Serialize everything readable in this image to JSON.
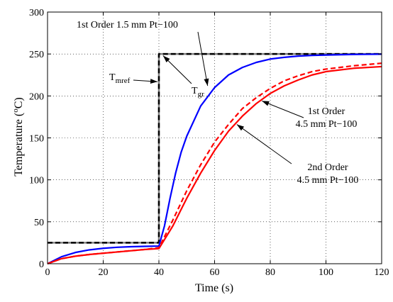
{
  "chart_data": {
    "type": "line",
    "title": "",
    "xlabel": "Time (s)",
    "ylabel_parts": {
      "base": "Temperature (",
      "sup": "o",
      "tail": "C)"
    },
    "xlim": [
      0,
      120
    ],
    "ylim": [
      0,
      300
    ],
    "xticks": [
      0,
      20,
      40,
      60,
      80,
      100,
      120
    ],
    "yticks": [
      0,
      50,
      100,
      150,
      200,
      250,
      300
    ],
    "grid": true,
    "legend": "none",
    "colors": {
      "blue": "#0000ff",
      "red": "#ff0000",
      "black": "#000000",
      "gray": "#808080"
    },
    "series": [
      {
        "color": "#808080",
        "style": "solid",
        "x": [
          0,
          40,
          40,
          120
        ],
        "y": [
          25,
          25,
          250,
          250
        ]
      },
      {
        "color": "#000000",
        "style": "dashed",
        "x": [
          0,
          40,
          40,
          120
        ],
        "y": [
          25,
          25,
          250,
          250
        ]
      },
      {
        "color": "#0000ff",
        "style": "solid",
        "x": [
          0,
          5,
          10,
          15,
          20,
          25,
          30,
          35,
          40,
          42,
          44,
          46,
          48,
          50,
          55,
          60,
          65,
          70,
          75,
          80,
          85,
          90,
          95,
          100,
          110,
          120
        ],
        "y": [
          0,
          8.3,
          13.4,
          16.5,
          18.4,
          19.6,
          20.3,
          20.7,
          21,
          45,
          78,
          108,
          133,
          152,
          188,
          210,
          225,
          234,
          240,
          244,
          246,
          247.5,
          248.3,
          248.8,
          249.5,
          249.8
        ]
      },
      {
        "color": "#ff0000",
        "style": "solid",
        "x": [
          0,
          5,
          10,
          15,
          20,
          25,
          30,
          35,
          40,
          45,
          50,
          55,
          60,
          65,
          70,
          75,
          80,
          85,
          90,
          95,
          100,
          110,
          120
        ],
        "y": [
          0,
          6,
          9,
          11,
          12.5,
          14,
          15.5,
          17,
          18,
          45,
          78,
          108,
          135,
          158,
          176,
          191,
          203,
          212,
          219,
          225,
          229,
          233,
          235
        ]
      },
      {
        "color": "#ff0000",
        "style": "dashed",
        "x": [
          0,
          5,
          10,
          15,
          20,
          25,
          30,
          35,
          40,
          45,
          50,
          55,
          60,
          65,
          70,
          75,
          80,
          85,
          90,
          95,
          100,
          110,
          120
        ],
        "y": [
          0,
          6,
          9,
          11,
          12.5,
          14,
          15.5,
          17,
          19,
          52,
          87,
          118,
          145,
          166,
          185,
          198,
          209,
          218,
          224,
          229,
          232,
          236,
          239
        ]
      }
    ],
    "annotations": [
      {
        "id": "first-order-15",
        "text": "1st Order 1.5 mm Pt−100"
      },
      {
        "id": "first-order-45-l1",
        "text": "1st Order"
      },
      {
        "id": "first-order-45-l2",
        "text": "4.5 mm Pt−100"
      },
      {
        "id": "second-order-45-l1",
        "text": "2nd Order"
      },
      {
        "id": "second-order-45-l2",
        "text": "4.5 mm Pt−100"
      },
      {
        "id": "tmref",
        "main": "T",
        "sub": "mref"
      },
      {
        "id": "tgr",
        "main": "T",
        "sub": "gr"
      }
    ]
  }
}
